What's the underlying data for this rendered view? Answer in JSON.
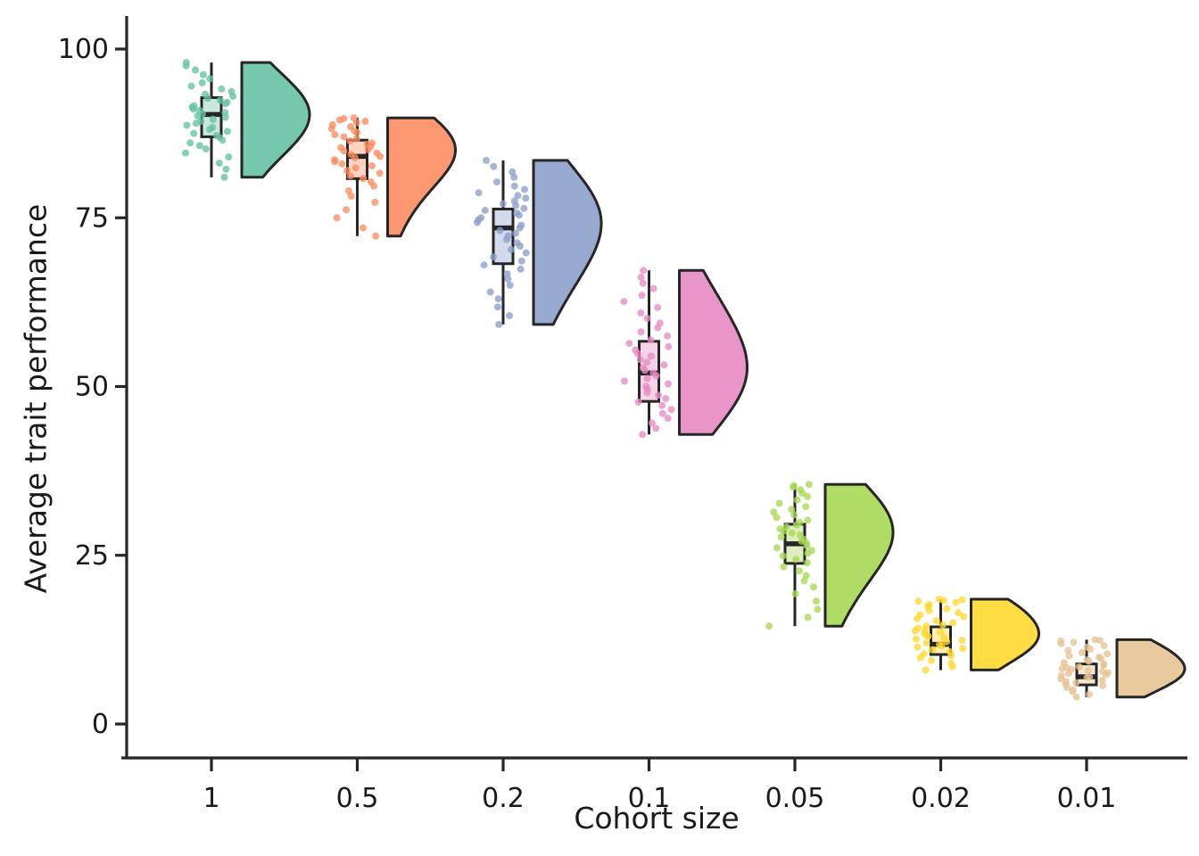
{
  "figure": {
    "background": "#ffffff",
    "text_color": "#1a1a1a",
    "axis_color": "#262626"
  },
  "chart_data": {
    "type": "raincloud (jittered scatter + box plot + right half-violin per category)",
    "title": "",
    "xlabel": "Cohort size",
    "ylabel": "Average trait performance",
    "categories": [
      "1",
      "0.5",
      "0.2",
      "0.1",
      "0.05",
      "0.02",
      "0.01"
    ],
    "y_ticks": [
      0,
      25,
      50,
      75,
      100
    ],
    "ylim": [
      -5,
      105
    ],
    "grid": false,
    "legend": false,
    "palette_name": "Set2",
    "series": [
      {
        "label": "1",
        "color": "#66C2A5",
        "box_fill": "#C8E8DB",
        "whisker_low": 81.0,
        "q1": 87.0,
        "median": 90.3,
        "q3": 92.8,
        "whisker_high": 98.0,
        "points": [
          81.0,
          82.2,
          83.1,
          84.0,
          84.6,
          85.2,
          85.7,
          86.1,
          86.5,
          86.9,
          87.2,
          87.5,
          87.8,
          88.1,
          88.4,
          88.7,
          89.0,
          89.3,
          89.6,
          89.9,
          90.1,
          90.4,
          90.6,
          90.9,
          91.1,
          91.4,
          91.6,
          91.9,
          92.1,
          92.4,
          92.7,
          93.0,
          93.3,
          93.7,
          94.1,
          94.5,
          95.0,
          95.6,
          96.2,
          96.9,
          97.5,
          98.0
        ]
      },
      {
        "label": "0.5",
        "color": "#FC8D62",
        "box_fill": "#FDD3C2",
        "whisker_low": 72.3,
        "q1": 80.8,
        "median": 84.1,
        "q3": 86.5,
        "whisker_high": 89.8,
        "points": [
          72.3,
          73.5,
          75.0,
          76.2,
          77.3,
          78.2,
          79.0,
          79.7,
          80.3,
          80.8,
          81.2,
          81.6,
          82.0,
          82.4,
          82.7,
          83.0,
          83.3,
          83.6,
          83.9,
          84.1,
          84.4,
          84.6,
          84.9,
          85.1,
          85.4,
          85.6,
          85.9,
          86.1,
          86.4,
          86.7,
          87.0,
          87.3,
          87.6,
          87.9,
          88.2,
          88.5,
          88.8,
          89.1,
          89.3,
          89.5,
          89.7,
          89.8
        ]
      },
      {
        "label": "0.2",
        "color": "#8DA0CB",
        "box_fill": "#D2DAEC",
        "whisker_low": 59.2,
        "q1": 68.2,
        "median": 73.5,
        "q3": 76.3,
        "whisker_high": 83.5,
        "points": [
          59.2,
          60.5,
          61.8,
          63.0,
          64.0,
          65.0,
          65.9,
          66.7,
          67.4,
          68.0,
          68.6,
          69.2,
          69.8,
          70.3,
          70.8,
          71.3,
          71.8,
          72.3,
          72.7,
          73.1,
          73.5,
          73.9,
          74.3,
          74.7,
          75.0,
          75.4,
          75.7,
          76.1,
          76.4,
          76.8,
          77.1,
          77.5,
          77.9,
          78.3,
          78.7,
          79.2,
          79.7,
          80.3,
          81.0,
          81.8,
          82.6,
          83.5
        ]
      },
      {
        "label": "0.1",
        "color": "#E78AC3",
        "box_fill": "#F6D2E9",
        "whisker_low": 42.9,
        "q1": 47.8,
        "median": 52.0,
        "q3": 56.7,
        "whisker_high": 67.2,
        "points": [
          42.9,
          43.8,
          44.6,
          45.3,
          46.0,
          46.6,
          47.2,
          47.7,
          48.2,
          48.7,
          49.1,
          49.6,
          50.0,
          50.4,
          50.8,
          51.2,
          51.6,
          52.0,
          52.4,
          52.8,
          53.2,
          53.6,
          54.0,
          54.5,
          54.9,
          55.4,
          55.9,
          56.4,
          56.9,
          57.5,
          58.1,
          58.7,
          59.4,
          60.1,
          60.9,
          61.7,
          62.6,
          63.5,
          64.5,
          65.3,
          66.2,
          67.2
        ]
      },
      {
        "label": "0.05",
        "color": "#A6D854",
        "box_fill": "#DDEFBE",
        "whisker_low": 14.5,
        "q1": 23.8,
        "median": 26.7,
        "q3": 29.6,
        "whisker_high": 35.5,
        "points": [
          14.5,
          15.8,
          17.0,
          18.2,
          19.3,
          20.3,
          21.2,
          22.0,
          22.7,
          23.3,
          23.9,
          24.4,
          24.9,
          25.3,
          25.7,
          26.1,
          26.4,
          26.8,
          27.1,
          27.4,
          27.7,
          28.0,
          28.3,
          28.6,
          28.9,
          29.2,
          29.5,
          29.9,
          30.2,
          30.6,
          31.0,
          31.4,
          31.8,
          32.2,
          32.7,
          33.2,
          33.7,
          34.2,
          34.7,
          35.1,
          35.3,
          35.5
        ]
      },
      {
        "label": "0.02",
        "color": "#FFD92F",
        "box_fill": "#FFF0B3",
        "whisker_low": 8.0,
        "q1": 10.3,
        "median": 11.8,
        "q3": 14.4,
        "whisker_high": 18.5,
        "points": [
          8.0,
          8.5,
          9.0,
          9.4,
          9.8,
          10.1,
          10.4,
          10.7,
          11.0,
          11.2,
          11.4,
          11.6,
          11.8,
          12.0,
          12.2,
          12.4,
          12.6,
          12.8,
          13.0,
          13.2,
          13.4,
          13.6,
          13.8,
          14.0,
          14.2,
          14.5,
          14.7,
          15.0,
          15.3,
          15.6,
          15.9,
          16.2,
          16.5,
          16.8,
          17.1,
          17.4,
          17.7,
          18.0,
          18.2,
          18.3,
          18.4,
          18.5
        ]
      },
      {
        "label": "0.01",
        "color": "#E5C494",
        "box_fill": "#F4E7D2",
        "whisker_low": 4.0,
        "q1": 5.8,
        "median": 7.0,
        "q3": 8.9,
        "whisker_high": 12.5,
        "points": [
          4.0,
          4.4,
          4.8,
          5.1,
          5.4,
          5.7,
          5.9,
          6.1,
          6.3,
          6.5,
          6.7,
          6.9,
          7.0,
          7.2,
          7.3,
          7.5,
          7.6,
          7.8,
          7.9,
          8.1,
          8.2,
          8.4,
          8.5,
          8.7,
          8.9,
          9.1,
          9.3,
          9.5,
          9.7,
          9.9,
          10.1,
          10.4,
          10.6,
          10.9,
          11.1,
          11.4,
          11.6,
          11.9,
          12.1,
          12.3,
          12.4,
          12.5
        ]
      }
    ]
  }
}
